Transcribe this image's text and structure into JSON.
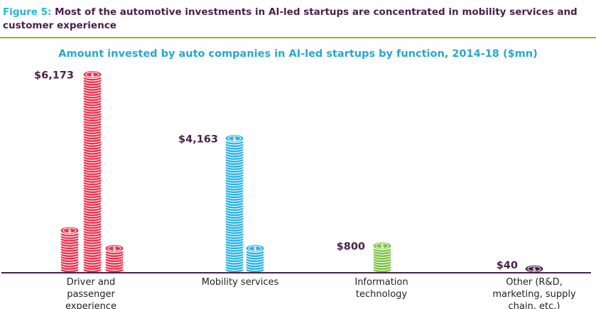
{
  "figure": {
    "label": "Figure 5:",
    "caption": "Most of the automotive investments in AI-led startups are concentrated in mobility services and customer experience"
  },
  "colors": {
    "red": "#e8344f",
    "blue": "#2bb3e1",
    "green": "#7cc242",
    "purple": "#4a1f4c",
    "rule": "#86bc25",
    "title": "#27a8cc"
  },
  "chart_data": {
    "type": "bar",
    "title": "Amount invested by auto companies in AI-led startups by function, 2014-18 ($mn)",
    "categories": [
      "Driver and passenger experience",
      "Mobility services",
      "Information technology",
      "Other (R&D, marketing, supply chain, etc.)"
    ],
    "values": [
      6173,
      4163,
      800,
      40
    ],
    "value_labels": [
      "$6,173",
      "$4,163",
      "$800",
      "$40"
    ],
    "bar_colors": [
      "#e8344f",
      "#2bb3e1",
      "#7cc242",
      "#4a1f4c"
    ],
    "style": "coin stacks",
    "grid": false,
    "legend": "none"
  }
}
